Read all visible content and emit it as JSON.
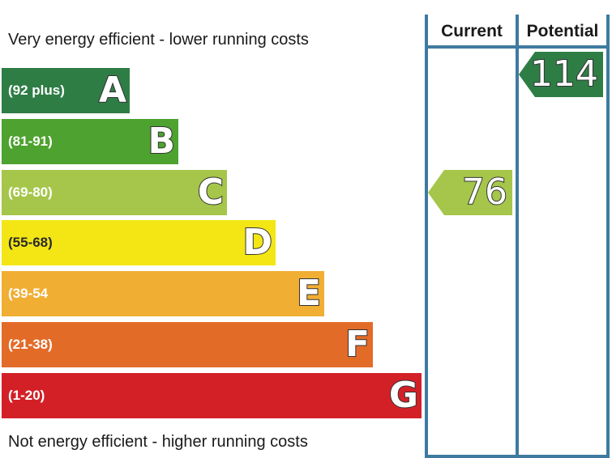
{
  "chart_data": {
    "type": "bar",
    "title": "",
    "top_caption": "Very energy efficient - lower running costs",
    "bottom_caption": "Not energy efficient - higher running costs",
    "bands": [
      {
        "letter": "A",
        "range": "(92 plus)",
        "color": "#2e7d45"
      },
      {
        "letter": "B",
        "range": "(81-91)",
        "color": "#4ea22f"
      },
      {
        "letter": "C",
        "range": "(69-80)",
        "color": "#a5c64a"
      },
      {
        "letter": "D",
        "range": "(55-68)",
        "color": "#f3e614"
      },
      {
        "letter": "E",
        "range": "(39-54",
        "color": "#f0ae33"
      },
      {
        "letter": "F",
        "range": "(21-38)",
        "color": "#e36b28"
      },
      {
        "letter": "G",
        "range": "(1-20)",
        "color": "#d32027"
      }
    ],
    "columns": [
      "Current",
      "Potential"
    ],
    "current": {
      "value": "76",
      "band": "C",
      "color": "#a5c64a"
    },
    "potential": {
      "value": "114",
      "band": "A",
      "color": "#2e7d45"
    }
  }
}
